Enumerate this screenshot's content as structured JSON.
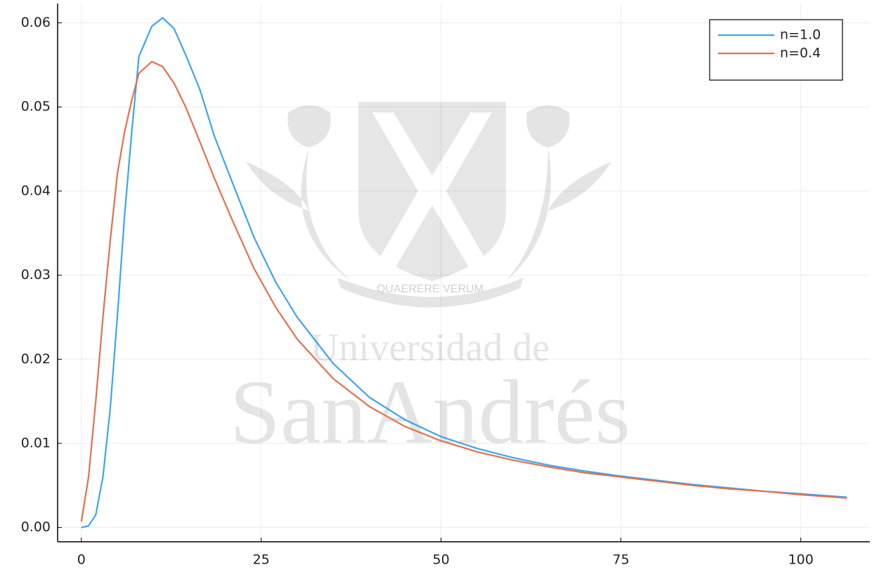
{
  "chart_data": {
    "type": "line",
    "watermark": [
      "QUAERERE VERUM",
      "Universidad de",
      "SanAndrés"
    ],
    "x": [
      0,
      1,
      2,
      3,
      4,
      5,
      6,
      7,
      8,
      9.8,
      11.3,
      12.9,
      14.5,
      16.5,
      18.5,
      21,
      24,
      27,
      30,
      35,
      40,
      45,
      50,
      55,
      60,
      65,
      70,
      75,
      80,
      85,
      90,
      95,
      100,
      106.4
    ],
    "series": [
      {
        "name": "n=1.0",
        "color": "#3da4ee",
        "values": [
          0.0,
          0.0002,
          0.0015,
          0.006,
          0.014,
          0.025,
          0.037,
          0.047,
          0.056,
          0.0596,
          0.0606,
          0.0593,
          0.0562,
          0.052,
          0.0465,
          0.041,
          0.0345,
          0.0292,
          0.025,
          0.0195,
          0.0155,
          0.0128,
          0.0108,
          0.0094,
          0.0083,
          0.0074,
          0.0067,
          0.0061,
          0.0056,
          0.0051,
          0.0047,
          0.0043,
          0.004,
          0.0036
        ]
      },
      {
        "name": "n=0.4",
        "color": "#e0714a",
        "values": [
          0.0007,
          0.006,
          0.015,
          0.025,
          0.034,
          0.042,
          0.047,
          0.0508,
          0.054,
          0.0554,
          0.0548,
          0.0528,
          0.05,
          0.0458,
          0.0415,
          0.0365,
          0.0308,
          0.0262,
          0.0224,
          0.0177,
          0.0144,
          0.012,
          0.0103,
          0.009,
          0.008,
          0.0072,
          0.0065,
          0.006,
          0.0055,
          0.005,
          0.0046,
          0.0043,
          0.0039,
          0.0035
        ]
      }
    ],
    "xlim": [
      -3.3,
      109.6
    ],
    "ylim": [
      -0.0017,
      0.0623
    ],
    "xticks": [
      0,
      25,
      50,
      75,
      100
    ],
    "yticks": [
      {
        "value": 0,
        "label": "0.00"
      },
      0.01,
      0.02,
      0.03,
      0.04,
      0.05,
      0.06
    ],
    "grid": true,
    "legend": "top-right"
  }
}
